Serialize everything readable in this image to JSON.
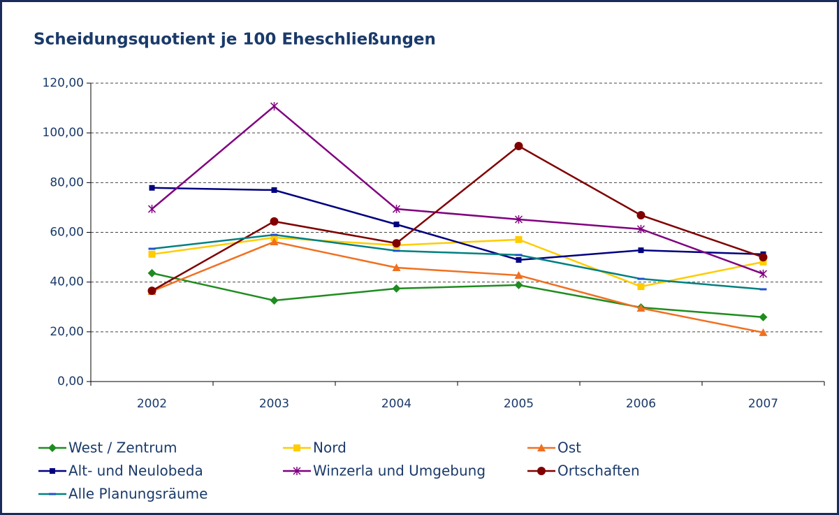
{
  "chart_data": {
    "type": "line",
    "title": "Scheidungsquotient je 100 Eheschließungen",
    "categories": [
      "2002",
      "2003",
      "2004",
      "2005",
      "2006",
      "2007"
    ],
    "series": [
      {
        "name": "West / Zentrum",
        "color": "#1e8c1e",
        "marker": "diamond",
        "values": [
          43.6,
          32.6,
          37.4,
          38.8,
          29.8,
          25.9
        ]
      },
      {
        "name": "Nord",
        "color": "#ffcc00",
        "marker": "square",
        "values": [
          51.2,
          57.9,
          54.8,
          57.1,
          38.2,
          48.1
        ]
      },
      {
        "name": "Ost",
        "color": "#f07020",
        "marker": "triangle",
        "values": [
          36.3,
          56.2,
          45.8,
          42.7,
          29.5,
          19.7
        ]
      },
      {
        "name": "Alt- und Neulobeda",
        "color": "#000080",
        "marker": "smallsquare",
        "values": [
          77.9,
          77.0,
          63.2,
          48.9,
          52.8,
          51.2
        ]
      },
      {
        "name": "Winzerla und Umgebung",
        "color": "#800080",
        "marker": "star",
        "values": [
          69.4,
          110.7,
          69.4,
          65.2,
          61.3,
          43.3
        ]
      },
      {
        "name": "Ortschaften",
        "color": "#800000",
        "marker": "circle",
        "values": [
          36.5,
          64.4,
          55.6,
          94.7,
          66.9,
          50.0
        ]
      },
      {
        "name": "Alle Planungsräume",
        "color": "#008080",
        "marker": "dash",
        "values": [
          53.4,
          59.0,
          52.6,
          50.9,
          41.3,
          37.1
        ]
      }
    ],
    "ylim": [
      0,
      120
    ],
    "yticks": [
      {
        "value": 0,
        "label": "0,00"
      },
      {
        "value": 20,
        "label": "20,00"
      },
      {
        "value": 40,
        "label": "40,00"
      },
      {
        "value": 60,
        "label": "60,00"
      },
      {
        "value": 80,
        "label": "80,00"
      },
      {
        "value": 100,
        "label": "100,00"
      },
      {
        "value": 120,
        "label": "120,00"
      }
    ],
    "grid": true
  }
}
